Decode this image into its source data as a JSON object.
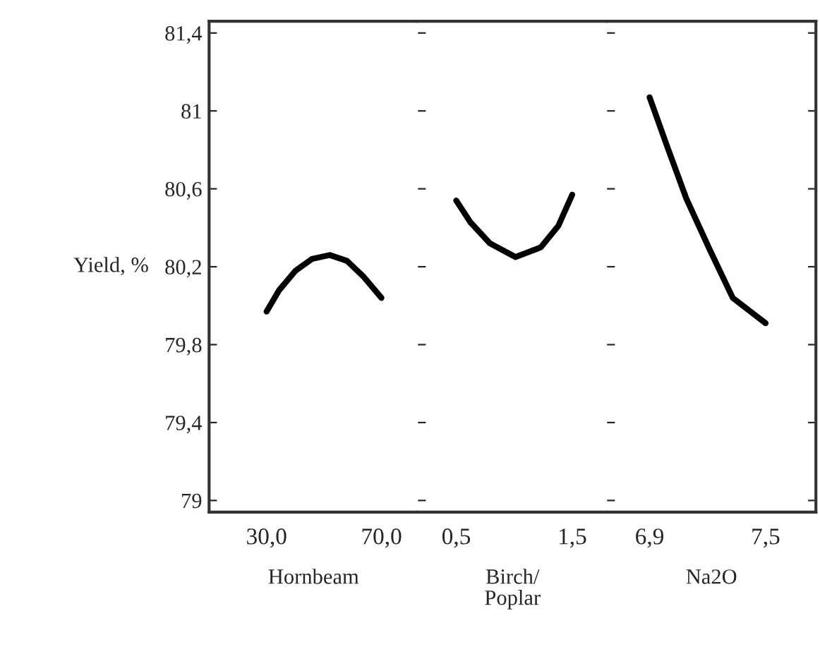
{
  "chart_data": [
    {
      "type": "line",
      "ylabel": "Yield, %",
      "xlabel": "Hornbeam",
      "x": [
        30,
        34.4,
        40.1,
        45.8,
        52,
        58,
        63.7,
        70
      ],
      "series": [
        {
          "color": "#000000",
          "values": [
            79.97,
            80.08,
            80.18,
            80.24,
            80.26,
            80.23,
            80.15,
            80.04
          ]
        }
      ],
      "xlim": [
        10,
        82.7
      ],
      "xticks": [
        {
          "value": 30,
          "label": "30,0"
        },
        {
          "value": 70,
          "label": "70,0"
        }
      ],
      "ylim": [
        78.94,
        81.46
      ],
      "yticks": [
        {
          "value": 79,
          "label": "79"
        },
        {
          "value": 79.4,
          "label": "79,4"
        },
        {
          "value": 79.8,
          "label": "79,8"
        },
        {
          "value": 80.2,
          "label": "80,2"
        },
        {
          "value": 80.6,
          "label": "80,6"
        },
        {
          "value": 81,
          "label": "81"
        },
        {
          "value": 81.4,
          "label": "81,4"
        }
      ]
    },
    {
      "type": "line",
      "xlabel": "Birch/\nPoplar",
      "x": [
        0.5,
        0.62,
        0.79,
        1.01,
        1.23,
        1.38,
        1.5
      ],
      "series": [
        {
          "color": "#000000",
          "values": [
            80.54,
            80.43,
            80.32,
            80.25,
            80.3,
            80.41,
            80.57
          ]
        }
      ],
      "xlim": [
        0.17,
        1.8
      ],
      "xticks": [
        {
          "value": 0.5,
          "label": "0,5"
        },
        {
          "value": 1.5,
          "label": "1,5"
        }
      ],
      "ylim": [
        78.94,
        81.46
      ],
      "tick_labels": "x"
    },
    {
      "type": "line",
      "xlabel": "Na2O",
      "x": [
        6.9,
        6.99,
        7.09,
        7.21,
        7.33,
        7.5
      ],
      "series": [
        {
          "color": "#000000",
          "values": [
            81.07,
            80.82,
            80.55,
            80.29,
            80.04,
            79.91
          ]
        }
      ],
      "xlim": [
        6.68,
        7.76
      ],
      "xticks": [
        {
          "value": 6.9,
          "label": "6,9"
        },
        {
          "value": 7.5,
          "label": "7,5"
        }
      ],
      "ylim": [
        78.94,
        81.46
      ],
      "tick_labels": "x"
    }
  ]
}
